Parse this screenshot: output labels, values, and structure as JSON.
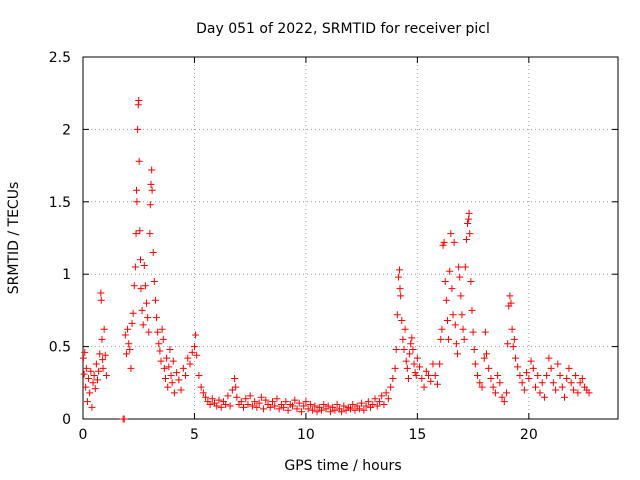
{
  "chart_data": {
    "type": "scatter",
    "title": "Day 051 of 2022, SRMTID for receiver picl",
    "xlabel": "GPS time / hours",
    "ylabel": "SRMTID / TECUs",
    "xlim": [
      0,
      24
    ],
    "ylim": [
      0,
      2.5
    ],
    "xticks": [
      0,
      5,
      10,
      15,
      20
    ],
    "xtick_labels": [
      "0",
      "5",
      "10",
      "15",
      "20"
    ],
    "yticks": [
      0,
      0.5,
      1,
      1.5,
      2,
      2.5
    ],
    "ytick_labels": [
      "0",
      "0.5",
      "1",
      "1.5",
      "2",
      "2.5"
    ],
    "grid": true,
    "marker": "+",
    "color": "#ff0000",
    "series": [
      {
        "name": "SRMTID",
        "points": [
          [
            0.02,
            0.42
          ],
          [
            0.05,
            0.31
          ],
          [
            0.08,
            0.46
          ],
          [
            0.12,
            0.22
          ],
          [
            0.15,
            0.35
          ],
          [
            0.2,
            0.12
          ],
          [
            0.25,
            0.28
          ],
          [
            0.3,
            0.18
          ],
          [
            0.35,
            0.33
          ],
          [
            0.4,
            0.08
          ],
          [
            0.45,
            0.25
          ],
          [
            0.5,
            0.3
          ],
          [
            0.55,
            0.21
          ],
          [
            0.6,
            0.38
          ],
          [
            0.65,
            0.27
          ],
          [
            0.7,
            0.33
          ],
          [
            0.75,
            0.45
          ],
          [
            0.8,
            0.87
          ],
          [
            0.82,
            0.82
          ],
          [
            0.85,
            0.55
          ],
          [
            0.88,
            0.41
          ],
          [
            0.9,
            0.35
          ],
          [
            0.95,
            0.62
          ],
          [
            1.0,
            0.44
          ],
          [
            1.05,
            0.3
          ],
          [
            1.8,
            0.0
          ],
          [
            1.85,
            0.0
          ],
          [
            1.9,
            0.58
          ],
          [
            1.95,
            0.45
          ],
          [
            2.0,
            0.62
          ],
          [
            2.05,
            0.52
          ],
          [
            2.1,
            0.48
          ],
          [
            2.15,
            0.35
          ],
          [
            2.2,
            0.66
          ],
          [
            2.25,
            0.73
          ],
          [
            2.3,
            0.92
          ],
          [
            2.35,
            1.05
          ],
          [
            2.38,
            1.28
          ],
          [
            2.4,
            1.58
          ],
          [
            2.42,
            1.5
          ],
          [
            2.45,
            2.0
          ],
          [
            2.48,
            2.17
          ],
          [
            2.5,
            2.2
          ],
          [
            2.52,
            1.78
          ],
          [
            2.55,
            1.3
          ],
          [
            2.58,
            1.1
          ],
          [
            2.6,
            0.9
          ],
          [
            2.65,
            0.75
          ],
          [
            2.7,
            0.65
          ],
          [
            2.75,
            1.06
          ],
          [
            2.8,
            0.92
          ],
          [
            2.85,
            0.8
          ],
          [
            2.9,
            0.7
          ],
          [
            2.95,
            0.6
          ],
          [
            3.0,
            1.28
          ],
          [
            3.02,
            1.48
          ],
          [
            3.05,
            1.62
          ],
          [
            3.08,
            1.72
          ],
          [
            3.1,
            1.58
          ],
          [
            3.15,
            1.15
          ],
          [
            3.2,
            0.95
          ],
          [
            3.25,
            0.82
          ],
          [
            3.3,
            0.7
          ],
          [
            3.35,
            0.6
          ],
          [
            3.4,
            0.52
          ],
          [
            3.45,
            0.47
          ],
          [
            3.5,
            0.4
          ],
          [
            3.55,
            0.62
          ],
          [
            3.6,
            0.55
          ],
          [
            3.65,
            0.35
          ],
          [
            3.7,
            0.28
          ],
          [
            3.75,
            0.42
          ],
          [
            3.8,
            0.22
          ],
          [
            3.85,
            0.36
          ],
          [
            3.9,
            0.48
          ],
          [
            3.95,
            0.3
          ],
          [
            4.0,
            0.25
          ],
          [
            4.05,
            0.4
          ],
          [
            4.1,
            0.18
          ],
          [
            4.2,
            0.32
          ],
          [
            4.3,
            0.27
          ],
          [
            4.4,
            0.2
          ],
          [
            4.5,
            0.35
          ],
          [
            4.6,
            0.3
          ],
          [
            4.7,
            0.42
          ],
          [
            4.8,
            0.38
          ],
          [
            4.9,
            0.46
          ],
          [
            5.0,
            0.5
          ],
          [
            5.05,
            0.58
          ],
          [
            5.1,
            0.44
          ],
          [
            5.2,
            0.3
          ],
          [
            5.3,
            0.22
          ],
          [
            5.4,
            0.18
          ],
          [
            5.5,
            0.15
          ],
          [
            5.6,
            0.12
          ],
          [
            5.7,
            0.1
          ],
          [
            5.8,
            0.14
          ],
          [
            5.9,
            0.11
          ],
          [
            6.0,
            0.09
          ],
          [
            6.1,
            0.13
          ],
          [
            6.2,
            0.08
          ],
          [
            6.3,
            0.12
          ],
          [
            6.4,
            0.1
          ],
          [
            6.5,
            0.16
          ],
          [
            6.6,
            0.09
          ],
          [
            6.7,
            0.2
          ],
          [
            6.8,
            0.28
          ],
          [
            6.85,
            0.22
          ],
          [
            6.9,
            0.15
          ],
          [
            7.0,
            0.1
          ],
          [
            7.1,
            0.12
          ],
          [
            7.2,
            0.08
          ],
          [
            7.3,
            0.14
          ],
          [
            7.4,
            0.1
          ],
          [
            7.5,
            0.16
          ],
          [
            7.6,
            0.09
          ],
          [
            7.7,
            0.12
          ],
          [
            7.8,
            0.08
          ],
          [
            7.9,
            0.11
          ],
          [
            8.0,
            0.15
          ],
          [
            8.1,
            0.07
          ],
          [
            8.2,
            0.13
          ],
          [
            8.3,
            0.1
          ],
          [
            8.4,
            0.08
          ],
          [
            8.5,
            0.12
          ],
          [
            8.6,
            0.09
          ],
          [
            8.7,
            0.14
          ],
          [
            8.8,
            0.07
          ],
          [
            8.9,
            0.1
          ],
          [
            9.0,
            0.08
          ],
          [
            9.1,
            0.12
          ],
          [
            9.2,
            0.06
          ],
          [
            9.3,
            0.1
          ],
          [
            9.4,
            0.09
          ],
          [
            9.5,
            0.13
          ],
          [
            9.6,
            0.07
          ],
          [
            9.7,
            0.11
          ],
          [
            9.8,
            0.05
          ],
          [
            9.9,
            0.09
          ],
          [
            10.0,
            0.12
          ],
          [
            10.1,
            0.07
          ],
          [
            10.2,
            0.1
          ],
          [
            10.3,
            0.06
          ],
          [
            10.4,
            0.09
          ],
          [
            10.5,
            0.05
          ],
          [
            10.6,
            0.08
          ],
          [
            10.7,
            0.06
          ],
          [
            10.8,
            0.1
          ],
          [
            10.9,
            0.07
          ],
          [
            11.0,
            0.09
          ],
          [
            11.1,
            0.05
          ],
          [
            11.2,
            0.08
          ],
          [
            11.3,
            0.06
          ],
          [
            11.4,
            0.1
          ],
          [
            11.5,
            0.07
          ],
          [
            11.6,
            0.05
          ],
          [
            11.7,
            0.09
          ],
          [
            11.8,
            0.06
          ],
          [
            11.9,
            0.08
          ],
          [
            12.0,
            0.07
          ],
          [
            12.1,
            0.1
          ],
          [
            12.2,
            0.06
          ],
          [
            12.3,
            0.09
          ],
          [
            12.4,
            0.07
          ],
          [
            12.5,
            0.11
          ],
          [
            12.6,
            0.06
          ],
          [
            12.7,
            0.09
          ],
          [
            12.8,
            0.12
          ],
          [
            12.9,
            0.08
          ],
          [
            13.0,
            0.1
          ],
          [
            13.1,
            0.14
          ],
          [
            13.2,
            0.09
          ],
          [
            13.3,
            0.12
          ],
          [
            13.4,
            0.16
          ],
          [
            13.5,
            0.1
          ],
          [
            13.6,
            0.18
          ],
          [
            13.7,
            0.14
          ],
          [
            13.8,
            0.22
          ],
          [
            13.9,
            0.28
          ],
          [
            14.0,
            0.35
          ],
          [
            14.05,
            0.48
          ],
          [
            14.1,
            0.72
          ],
          [
            14.15,
            0.98
          ],
          [
            14.2,
            1.03
          ],
          [
            14.22,
            0.9
          ],
          [
            14.25,
            0.85
          ],
          [
            14.3,
            0.68
          ],
          [
            14.35,
            0.55
          ],
          [
            14.4,
            0.48
          ],
          [
            14.45,
            0.62
          ],
          [
            14.5,
            0.4
          ],
          [
            14.55,
            0.35
          ],
          [
            14.6,
            0.28
          ],
          [
            14.65,
            0.45
          ],
          [
            14.7,
            0.52
          ],
          [
            14.75,
            0.56
          ],
          [
            14.8,
            0.48
          ],
          [
            14.85,
            0.38
          ],
          [
            14.9,
            0.32
          ],
          [
            14.95,
            0.3
          ],
          [
            15.0,
            0.42
          ],
          [
            15.1,
            0.36
          ],
          [
            15.2,
            0.28
          ],
          [
            15.3,
            0.22
          ],
          [
            15.4,
            0.33
          ],
          [
            15.5,
            0.3
          ],
          [
            15.6,
            0.26
          ],
          [
            15.7,
            0.38
          ],
          [
            15.8,
            0.3
          ],
          [
            15.9,
            0.24
          ],
          [
            16.0,
            0.38
          ],
          [
            16.05,
            0.55
          ],
          [
            16.1,
            0.62
          ],
          [
            16.15,
            1.2
          ],
          [
            16.2,
            1.22
          ],
          [
            16.25,
            0.95
          ],
          [
            16.3,
            0.82
          ],
          [
            16.35,
            0.68
          ],
          [
            16.4,
            0.55
          ],
          [
            16.45,
            1.02
          ],
          [
            16.5,
            1.28
          ],
          [
            16.55,
            0.9
          ],
          [
            16.6,
            0.72
          ],
          [
            16.65,
            1.22
          ],
          [
            16.7,
            0.65
          ],
          [
            16.75,
            0.52
          ],
          [
            16.8,
            0.45
          ],
          [
            16.85,
            1.05
          ],
          [
            16.9,
            0.98
          ],
          [
            16.95,
            0.85
          ],
          [
            17.0,
            0.72
          ],
          [
            17.05,
            0.62
          ],
          [
            17.1,
            0.55
          ],
          [
            17.15,
            1.05
          ],
          [
            17.2,
            1.24
          ],
          [
            17.25,
            1.35
          ],
          [
            17.3,
            1.38
          ],
          [
            17.32,
            1.42
          ],
          [
            17.35,
            1.28
          ],
          [
            17.4,
            0.95
          ],
          [
            17.45,
            0.75
          ],
          [
            17.5,
            0.6
          ],
          [
            17.55,
            0.48
          ],
          [
            17.6,
            0.38
          ],
          [
            17.7,
            0.3
          ],
          [
            17.8,
            0.25
          ],
          [
            17.9,
            0.22
          ],
          [
            18.0,
            0.42
          ],
          [
            18.05,
            0.6
          ],
          [
            18.1,
            0.45
          ],
          [
            18.2,
            0.35
          ],
          [
            18.3,
            0.28
          ],
          [
            18.4,
            0.22
          ],
          [
            18.5,
            0.18
          ],
          [
            18.6,
            0.3
          ],
          [
            18.7,
            0.25
          ],
          [
            18.8,
            0.15
          ],
          [
            18.9,
            0.12
          ],
          [
            19.0,
            0.18
          ],
          [
            19.05,
            0.52
          ],
          [
            19.1,
            0.78
          ],
          [
            19.15,
            0.85
          ],
          [
            19.2,
            0.8
          ],
          [
            19.25,
            0.62
          ],
          [
            19.3,
            0.5
          ],
          [
            19.35,
            0.55
          ],
          [
            19.4,
            0.42
          ],
          [
            19.5,
            0.36
          ],
          [
            19.6,
            0.3
          ],
          [
            19.7,
            0.25
          ],
          [
            19.8,
            0.2
          ],
          [
            19.9,
            0.32
          ],
          [
            20.0,
            0.28
          ],
          [
            20.1,
            0.4
          ],
          [
            20.2,
            0.35
          ],
          [
            20.3,
            0.22
          ],
          [
            20.4,
            0.3
          ],
          [
            20.5,
            0.18
          ],
          [
            20.6,
            0.25
          ],
          [
            20.7,
            0.15
          ],
          [
            20.8,
            0.3
          ],
          [
            20.9,
            0.42
          ],
          [
            21.0,
            0.35
          ],
          [
            21.1,
            0.25
          ],
          [
            21.2,
            0.2
          ],
          [
            21.3,
            0.38
          ],
          [
            21.4,
            0.3
          ],
          [
            21.5,
            0.22
          ],
          [
            21.6,
            0.15
          ],
          [
            21.7,
            0.28
          ],
          [
            21.8,
            0.35
          ],
          [
            21.9,
            0.25
          ],
          [
            22.0,
            0.2
          ],
          [
            22.1,
            0.3
          ],
          [
            22.2,
            0.18
          ],
          [
            22.3,
            0.25
          ],
          [
            22.4,
            0.28
          ],
          [
            22.5,
            0.22
          ],
          [
            22.6,
            0.2
          ],
          [
            22.7,
            0.18
          ]
        ]
      }
    ]
  }
}
